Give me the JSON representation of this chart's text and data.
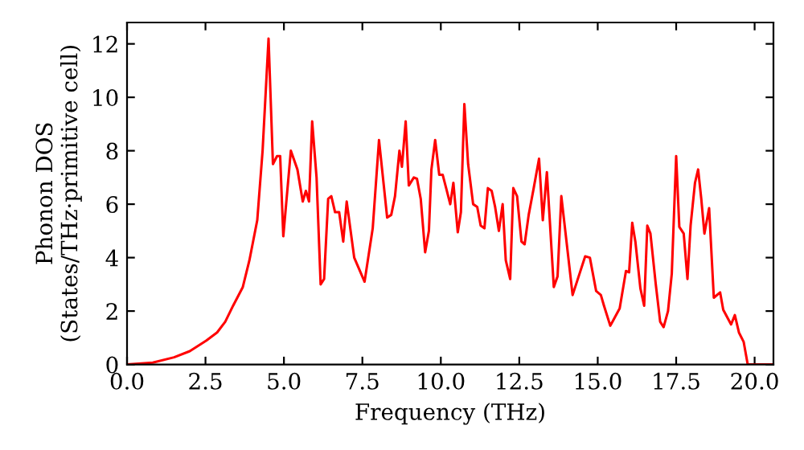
{
  "chart_data": {
    "type": "line",
    "xlabel": "Frequency (THz)",
    "ylabel": "Phonon DOS\n(States/THz·primitive cell)",
    "xlim": [
      0,
      20.6
    ],
    "ylim": [
      0,
      12.8
    ],
    "xticks": [
      {
        "value": 0,
        "label": "0.0"
      },
      {
        "value": 2.5,
        "label": "2.5"
      },
      {
        "value": 5,
        "label": "5.0"
      },
      {
        "value": 7.5,
        "label": "7.5"
      },
      {
        "value": 10,
        "label": "10.0"
      },
      {
        "value": 12.5,
        "label": "12.5"
      },
      {
        "value": 15,
        "label": "15.0"
      },
      {
        "value": 17.5,
        "label": "17.5"
      },
      {
        "value": 20,
        "label": "20.0"
      }
    ],
    "yticks": [
      0,
      2,
      4,
      6,
      8,
      10,
      12
    ],
    "grid": false,
    "marker": "none",
    "line_style": "solid",
    "series": [
      {
        "color": "#ff0000",
        "x": [
          0,
          0.82,
          1.5,
          2.0,
          2.53,
          2.87,
          3.13,
          3.38,
          3.69,
          3.9,
          4.15,
          4.32,
          4.51,
          4.65,
          4.78,
          4.88,
          4.98,
          5.22,
          5.43,
          5.6,
          5.7,
          5.8,
          5.9,
          6.04,
          6.17,
          6.28,
          6.41,
          6.51,
          6.63,
          6.76,
          6.89,
          7.0,
          7.24,
          7.57,
          7.83,
          8.03,
          8.29,
          8.42,
          8.54,
          8.68,
          8.76,
          8.88,
          8.98,
          9.14,
          9.24,
          9.36,
          9.5,
          9.62,
          9.7,
          9.82,
          9.95,
          10.06,
          10.17,
          10.3,
          10.4,
          10.54,
          10.64,
          10.75,
          10.87,
          11.03,
          11.16,
          11.27,
          11.39,
          11.5,
          11.62,
          11.73,
          11.85,
          11.97,
          12.07,
          12.21,
          12.31,
          12.43,
          12.57,
          12.67,
          12.8,
          12.96,
          13.13,
          13.25,
          13.38,
          13.6,
          13.72,
          13.84,
          14.2,
          14.6,
          14.75,
          14.95,
          15.1,
          15.2,
          15.4,
          15.7,
          15.9,
          16.0,
          16.1,
          16.2,
          16.36,
          16.48,
          16.58,
          16.68,
          16.85,
          16.99,
          17.1,
          17.24,
          17.36,
          17.5,
          17.6,
          17.74,
          17.86,
          17.96,
          18.1,
          18.2,
          18.3,
          18.4,
          18.55,
          18.7,
          18.9,
          19.0,
          19.25,
          19.37,
          19.5,
          19.65,
          19.78,
          20.6
        ],
        "values": [
          0,
          0.07,
          0.27,
          0.5,
          0.9,
          1.2,
          1.6,
          2.2,
          2.9,
          3.9,
          5.4,
          8.0,
          12.2,
          7.5,
          7.8,
          7.8,
          4.8,
          8.0,
          7.3,
          6.1,
          6.5,
          6.1,
          9.1,
          7.0,
          3.0,
          3.2,
          6.2,
          6.3,
          5.7,
          5.7,
          4.6,
          6.1,
          4.0,
          3.1,
          5.1,
          8.4,
          5.5,
          5.6,
          6.3,
          8.0,
          7.4,
          9.1,
          6.7,
          7.0,
          6.95,
          6.2,
          4.2,
          5.0,
          7.3,
          8.4,
          7.1,
          7.1,
          6.6,
          6.0,
          6.8,
          4.95,
          5.7,
          9.75,
          7.5,
          6.0,
          5.9,
          5.2,
          5.1,
          6.6,
          6.5,
          5.9,
          5.0,
          6.0,
          3.9,
          3.2,
          6.6,
          6.3,
          4.6,
          4.5,
          5.6,
          6.6,
          7.7,
          5.4,
          7.2,
          2.9,
          3.3,
          6.3,
          2.6,
          4.05,
          4.0,
          2.75,
          2.6,
          2.2,
          1.45,
          2.1,
          3.5,
          3.45,
          5.3,
          4.6,
          2.85,
          2.2,
          5.2,
          4.9,
          3.0,
          1.6,
          1.4,
          2.0,
          3.4,
          7.8,
          5.15,
          4.9,
          3.2,
          5.2,
          6.8,
          7.3,
          6.2,
          4.9,
          5.85,
          2.5,
          2.7,
          2.05,
          1.5,
          1.85,
          1.2,
          0.85,
          0,
          0
        ]
      }
    ]
  }
}
